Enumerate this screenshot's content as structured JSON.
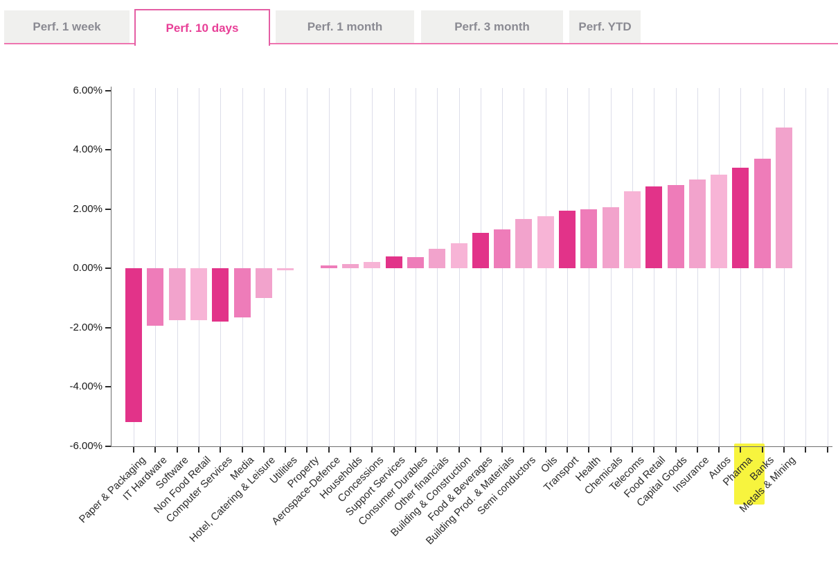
{
  "tabs": {
    "items": [
      {
        "label": "Perf. 1 week",
        "active": false
      },
      {
        "label": "Perf. 10 days",
        "active": true
      },
      {
        "label": "Perf. 1 month",
        "active": false
      },
      {
        "label": "Perf. 3 month",
        "active": false
      },
      {
        "label": "Perf. YTD",
        "active": false
      }
    ]
  },
  "colors": {
    "deep": "#e23389",
    "medium": "#ee7cb9",
    "medium_light": "#f2a3cc",
    "light": "#f7b4d6",
    "active_tab_text": "#e83f97",
    "active_tab_border": "#e45ea4",
    "inactive_tab_bg": "#f0f0ee",
    "inactive_tab_text": "#8a8a92",
    "tab_underline": "#ee74af",
    "gridline": "#dcdde9",
    "highlight": "#f7f43e"
  },
  "chart_data": {
    "type": "bar",
    "title": "",
    "xlabel": "",
    "ylabel": "",
    "ylim": [
      -6,
      6
    ],
    "grid": "vertical",
    "y_ticks": [
      "6.00%",
      "4.00%",
      "2.00%",
      "0.00%",
      "-2.00%",
      "-4.00%",
      "-6.00%"
    ],
    "categories": [
      "Paper & Packaging",
      "IT Hardware",
      "Software",
      "Non Food Retail",
      "Computer Services",
      "Media",
      "Hotel, Catering & Leisure",
      "Utilities",
      "Property",
      "Aerospace-Defence",
      "Households",
      "Concessions",
      "Support Services",
      "Consumer Durables",
      "Other financials",
      "Building & Construction",
      "Food & Beverages",
      "Building Prod. & Materials",
      "Semi conductors",
      "Oils",
      "Transport",
      "Health",
      "Chemicals",
      "Telecoms",
      "Food Retail",
      "Capital Goods",
      "Insurance",
      "Autos",
      "Pharma",
      "Banks",
      "Metals & Mining"
    ],
    "values": [
      -5.2,
      -1.95,
      -1.75,
      -1.75,
      -1.8,
      -1.65,
      -1.0,
      -0.08,
      0.0,
      0.1,
      0.15,
      0.2,
      0.4,
      0.38,
      0.65,
      0.85,
      1.2,
      1.3,
      1.65,
      1.75,
      1.95,
      2.0,
      2.05,
      2.6,
      2.75,
      2.8,
      3.0,
      3.15,
      3.4,
      3.7,
      4.75
    ],
    "bar_shades": [
      "deep",
      "medium",
      "medium_light",
      "light",
      "deep",
      "medium",
      "medium_light",
      "light",
      "deep",
      "medium",
      "medium_light",
      "light",
      "deep",
      "medium",
      "medium_light",
      "light",
      "deep",
      "medium",
      "medium_light",
      "light",
      "deep",
      "medium",
      "medium_light",
      "light",
      "deep",
      "medium",
      "medium_light",
      "light",
      "deep",
      "medium",
      "medium_light"
    ],
    "highlighted_category": "Banks",
    "value_format": "percent"
  }
}
